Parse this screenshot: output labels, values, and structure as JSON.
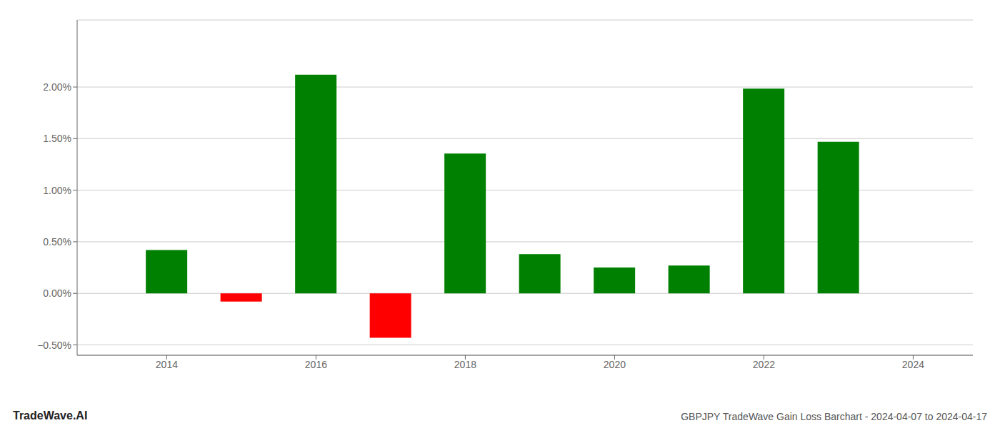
{
  "chart_data": {
    "type": "bar",
    "title": "GBPJPY TradeWave Gain Loss Barchart - 2024-04-07 to 2024-04-17",
    "annotations": [
      "TradeWave.AI"
    ],
    "x": [
      2014,
      2015,
      2016,
      2017,
      2018,
      2019,
      2020,
      2021,
      2022,
      2023
    ],
    "values": [
      0.0042,
      -0.0008,
      0.0212,
      -0.0043,
      0.01355,
      0.0038,
      0.0025,
      0.0027,
      0.01985,
      0.0147
    ],
    "colors": [
      "#008000",
      "#ff0000",
      "#008000",
      "#ff0000",
      "#008000",
      "#008000",
      "#008000",
      "#008000",
      "#008000",
      "#008000"
    ],
    "xlim": [
      2012.8,
      2024.8
    ],
    "xticks": [
      2014,
      2016,
      2018,
      2020,
      2022,
      2024
    ],
    "ylim": [
      -0.006,
      0.0265
    ],
    "yticks": [
      {
        "value": -0.005,
        "label": "−0.50%"
      },
      {
        "value": 0.0,
        "label": "0.00%"
      },
      {
        "value": 0.005,
        "label": "0.50%"
      },
      {
        "value": 0.01,
        "label": "1.00%"
      },
      {
        "value": 0.015,
        "label": "1.50%"
      },
      {
        "value": 0.02,
        "label": "2.00%"
      }
    ],
    "grid": true
  }
}
